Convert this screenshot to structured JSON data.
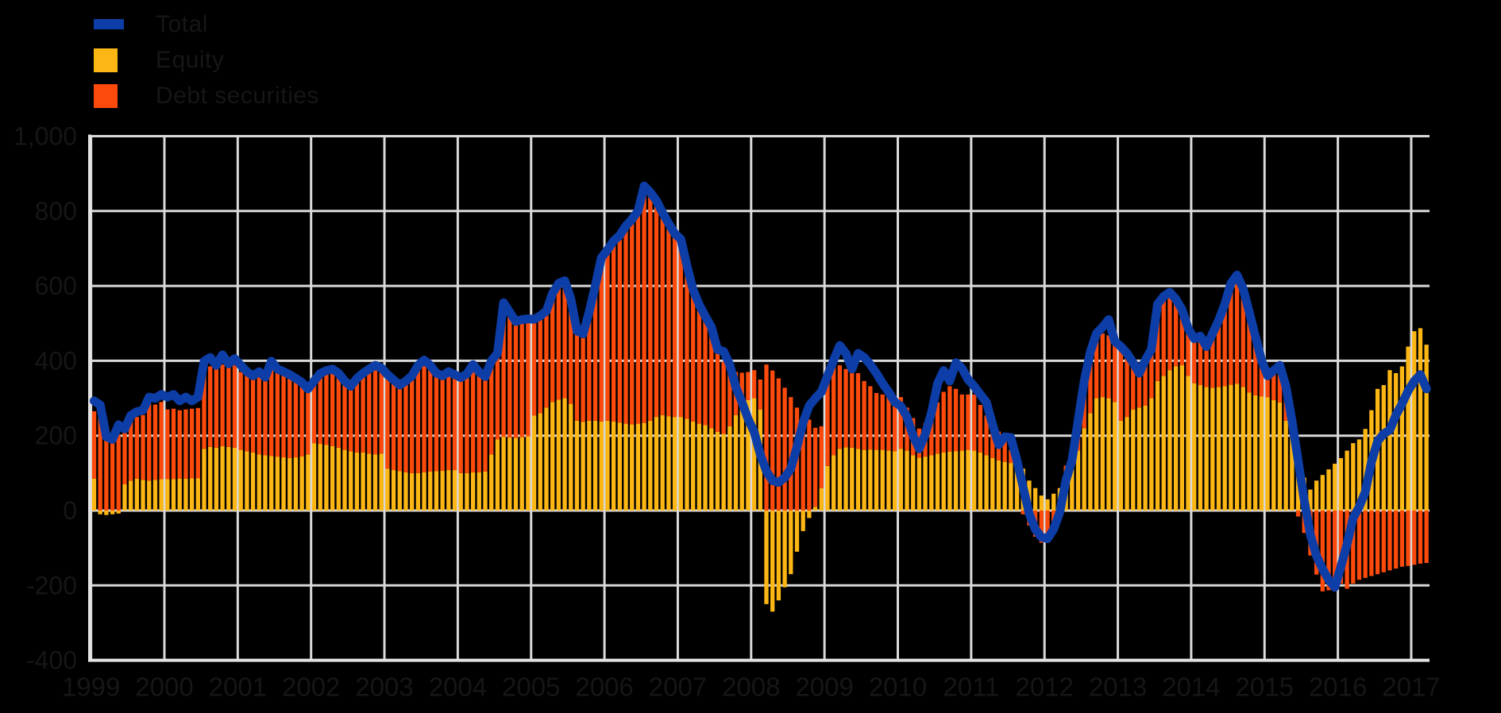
{
  "legend": {
    "items": [
      {
        "label": "Total",
        "color": "#0d3da6",
        "type": "line"
      },
      {
        "label": "Equity",
        "color": "#fdb714",
        "type": "bar"
      },
      {
        "label": "Debt securities",
        "color": "#fb4a0b",
        "type": "bar"
      }
    ]
  },
  "axes": {
    "y_ticks": [
      "1,000",
      "800",
      "600",
      "400",
      "200",
      "0",
      "-200",
      "-400"
    ],
    "y_tick_values": [
      1000,
      800,
      600,
      400,
      200,
      0,
      -200,
      -400
    ],
    "x_ticks": [
      "1999",
      "2000",
      "2001",
      "2002",
      "2003",
      "2004",
      "2005",
      "2006",
      "2007",
      "2008",
      "2009",
      "2010",
      "2011",
      "2012",
      "2013",
      "2014",
      "2015",
      "2016",
      "2017"
    ],
    "text_color": "#161616",
    "grid_color": "#d9d9d9",
    "axis_color": "#e3e3e3"
  },
  "chart_data": {
    "type": "bar",
    "subtype": "stacked-bars-with-line-overlay",
    "frequency": "monthly",
    "x_start_year": 1999,
    "x_end": "2017-03",
    "ylim": [
      -400,
      1000
    ],
    "xlim_years": [
      1999.0,
      2017.25
    ],
    "grid": true,
    "legend_position": "top-left",
    "background": "#000000",
    "title": "",
    "xlabel": "",
    "ylabel": "",
    "series": [
      {
        "name": "Total",
        "type": "line",
        "color": "#0d3da6",
        "values": [
          293,
          282,
          197,
          190,
          229,
          218,
          254,
          264,
          268,
          303,
          300,
          310,
          303,
          310,
          293,
          303,
          293,
          303,
          399,
          409,
          388,
          416,
          392,
          406,
          388,
          371,
          360,
          371,
          356,
          399,
          378,
          371,
          363,
          353,
          342,
          325,
          346,
          366,
          374,
          378,
          367,
          346,
          332,
          353,
          367,
          378,
          388,
          381,
          363,
          349,
          335,
          346,
          360,
          388,
          402,
          388,
          367,
          360,
          371,
          363,
          355,
          365,
          390,
          370,
          358,
          400,
          420,
          555,
          530,
          505,
          510,
          512,
          511,
          520,
          533,
          580,
          607,
          614,
          565,
          480,
          472,
          530,
          600,
          675,
          696,
          720,
          735,
          760,
          778,
          800,
          867,
          850,
          828,
          796,
          767,
          740,
          725,
          654,
          590,
          550,
          519,
          490,
          430,
          425,
          390,
          330,
          290,
          245,
          210,
          150,
          105,
          80,
          75,
          88,
          112,
          170,
          235,
          280,
          300,
          317,
          360,
          402,
          441,
          420,
          378,
          420,
          409,
          390,
          367,
          340,
          317,
          290,
          279,
          250,
          200,
          165,
          204,
          261,
          339,
          374,
          346,
          395,
          380,
          350,
          332,
          310,
          289,
          230,
          176,
          197,
          195,
          134,
          63,
          -8,
          -50,
          -71,
          -75,
          -50,
          -5,
          80,
          134,
          240,
          346,
          424,
          473,
          490,
          510,
          452,
          438,
          420,
          395,
          367,
          402,
          431,
          551,
          572,
          583,
          565,
          537,
          487,
          459,
          466,
          438,
          473,
          508,
          551,
          607,
          629,
          593,
          530,
          466,
          402,
          360,
          374,
          388,
          332,
          240,
          134,
          28,
          -64,
          -121,
          -156,
          -185,
          -205,
          -150,
          -90,
          -20,
          10,
          50,
          130,
          185,
          205,
          215,
          255,
          285,
          320,
          346,
          363,
          325
        ]
      },
      {
        "name": "Equity",
        "type": "bar",
        "stack": "flows",
        "color": "#fdb714",
        "values": [
          85,
          -10,
          -12,
          -10,
          -8,
          70,
          80,
          85,
          82,
          80,
          82,
          84,
          84,
          84,
          85,
          85,
          86,
          86,
          165,
          170,
          168,
          172,
          170,
          168,
          162,
          158,
          155,
          150,
          148,
          146,
          144,
          142,
          140,
          142,
          145,
          150,
          180,
          178,
          175,
          172,
          168,
          162,
          158,
          155,
          155,
          152,
          150,
          152,
          112,
          108,
          105,
          102,
          100,
          100,
          102,
          104,
          105,
          106,
          108,
          108,
          100,
          100,
          102,
          102,
          104,
          150,
          190,
          197,
          195,
          194,
          196,
          198,
          254,
          260,
          275,
          290,
          296,
          300,
          285,
          240,
          237,
          240,
          240,
          238,
          240,
          238,
          235,
          232,
          230,
          232,
          234,
          240,
          250,
          255,
          252,
          250,
          250,
          245,
          238,
          232,
          228,
          220,
          210,
          205,
          225,
          255,
          280,
          295,
          300,
          270,
          -250,
          -270,
          -240,
          -205,
          -170,
          -110,
          -55,
          -20,
          10,
          60,
          119,
          148,
          165,
          169,
          168,
          165,
          162,
          163,
          162,
          162,
          160,
          158,
          165,
          160,
          148,
          141,
          144,
          148,
          152,
          155,
          157,
          158,
          160,
          162,
          160,
          155,
          148,
          140,
          134,
          130,
          127,
          118,
          112,
          80,
          60,
          40,
          30,
          45,
          60,
          90,
          120,
          160,
          220,
          260,
          300,
          303,
          300,
          290,
          240,
          250,
          270,
          275,
          280,
          300,
          346,
          360,
          375,
          385,
          388,
          360,
          340,
          335,
          330,
          328,
          330,
          332,
          336,
          339,
          330,
          315,
          308,
          305,
          303,
          295,
          289,
          240,
          197,
          150,
          88,
          56,
          80,
          95,
          110,
          125,
          140,
          160,
          180,
          190,
          218,
          268,
          325,
          335,
          375,
          367,
          385,
          438,
          479,
          487,
          443
        ]
      },
      {
        "name": "Debt securities",
        "type": "bar",
        "stack": "flows",
        "color": "#fb4a0b",
        "values": [
          180,
          261,
          202,
          196,
          203,
          140,
          160,
          165,
          173,
          205,
          201,
          206,
          186,
          188,
          183,
          185,
          186,
          188,
          210,
          215,
          212,
          218,
          215,
          220,
          208,
          210,
          203,
          215,
          212,
          234,
          226,
          223,
          220,
          213,
          200,
          180,
          160,
          182,
          195,
          200,
          197,
          183,
          172,
          193,
          207,
          220,
          230,
          226,
          238,
          232,
          225,
          238,
          252,
          280,
          294,
          278,
          257,
          249,
          257,
          250,
          250,
          262,
          288,
          263,
          246,
          245,
          225,
          348,
          325,
          304,
          306,
          307,
          257,
          260,
          258,
          290,
          311,
          314,
          280,
          240,
          235,
          290,
          360,
          437,
          456,
          482,
          500,
          528,
          548,
          568,
          633,
          610,
          578,
          541,
          515,
          490,
          475,
          409,
          352,
          318,
          291,
          270,
          220,
          193,
          155,
          115,
          88,
          75,
          75,
          80,
          390,
          374,
          353,
          328,
          303,
          275,
          254,
          243,
          211,
          165,
          262,
          247,
          223,
          209,
          206,
          202,
          184,
          169,
          152,
          148,
          143,
          145,
          138,
          115,
          99,
          78,
          89,
          106,
          137,
          162,
          175,
          167,
          150,
          148,
          150,
          127,
          106,
          86,
          77,
          60,
          35,
          16,
          -10,
          -40,
          -70,
          -86,
          -86,
          -40,
          -10,
          30,
          35,
          80,
          126,
          164,
          173,
          170,
          168,
          162,
          198,
          170,
          125,
          92,
          122,
          131,
          205,
          212,
          208,
          180,
          149,
          127,
          119,
          131,
          108,
          145,
          178,
          219,
          271,
          290,
          263,
          215,
          158,
          97,
          57,
          79,
          99,
          92,
          43,
          -16,
          -60,
          -120,
          -171,
          -216,
          -213,
          -205,
          -195,
          -209,
          -195,
          -185,
          -180,
          -175,
          -170,
          -165,
          -160,
          -155,
          -150,
          -148,
          -145,
          -142,
          -140
        ]
      }
    ]
  }
}
